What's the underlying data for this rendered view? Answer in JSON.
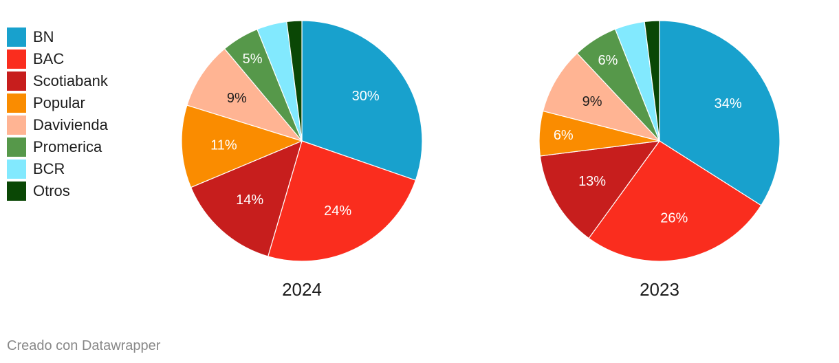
{
  "chart_data": {
    "type": "pie",
    "legend_position": "top-left",
    "categories": [
      "BN",
      "BAC",
      "Scotiabank",
      "Popular",
      "Davivienda",
      "Promerica",
      "BCR",
      "Otros"
    ],
    "colors": [
      "#18a1cd",
      "#fa2d1e",
      "#c71e1d",
      "#fa8c00",
      "#ffb493",
      "#56984a",
      "#82e9fe",
      "#0a4705"
    ],
    "label_colors": [
      "#ffffff",
      "#ffffff",
      "#ffffff",
      "#ffffff",
      "#1d1d1d",
      "#ffffff",
      "#1d1d1d",
      "#ffffff"
    ],
    "series": [
      {
        "name": "2024",
        "values": [
          30,
          24,
          14,
          11,
          9,
          5,
          4,
          2
        ],
        "labels": [
          "30%",
          "24%",
          "14%",
          "11%",
          "9%",
          "5%",
          "",
          ""
        ]
      },
      {
        "name": "2023",
        "values": [
          34,
          26,
          13,
          6,
          9,
          6,
          4,
          2
        ],
        "labels": [
          "34%",
          "26%",
          "13%",
          "6%",
          "9%",
          "6%",
          "",
          ""
        ]
      }
    ]
  },
  "footer": "Creado con Datawrapper"
}
